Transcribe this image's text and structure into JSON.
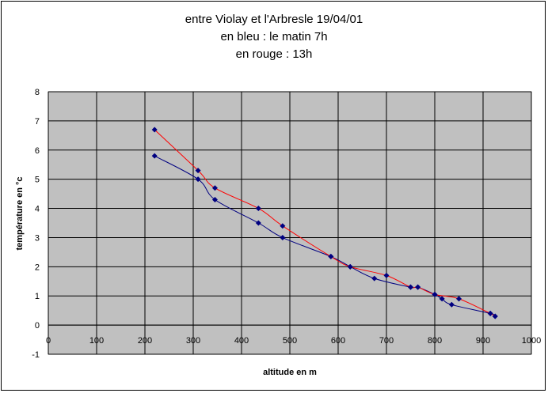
{
  "chart_data": {
    "type": "line",
    "title_lines": [
      "entre Violay et l'Arbresle 19/04/01",
      "en bleu : le matin 7h",
      "en rouge : 13h"
    ],
    "xlabel": "altitude en m",
    "ylabel": "température en °c",
    "xlim": [
      0,
      1000
    ],
    "ylim": [
      -1,
      8
    ],
    "x_ticks": [
      "0",
      "100",
      "200",
      "300",
      "400",
      "500",
      "600",
      "700",
      "800",
      "900",
      "1000"
    ],
    "y_ticks": [
      "-1",
      "0",
      "1",
      "2",
      "3",
      "4",
      "5",
      "6",
      "7",
      "8"
    ],
    "grid": true,
    "series": [
      {
        "color": "#000080",
        "points": [
          [
            220,
            5.8
          ],
          [
            310,
            5.0
          ],
          [
            345,
            4.3
          ],
          [
            435,
            3.5
          ],
          [
            485,
            3.0
          ],
          [
            585,
            2.35
          ],
          [
            625,
            2.0
          ],
          [
            675,
            1.6
          ],
          [
            750,
            1.3
          ],
          [
            765,
            1.3
          ],
          [
            800,
            1.05
          ],
          [
            815,
            0.9
          ],
          [
            835,
            0.7
          ],
          [
            915,
            0.4
          ],
          [
            925,
            0.3
          ]
        ]
      },
      {
        "color": "#ff0000",
        "points": [
          [
            220,
            6.7
          ],
          [
            310,
            5.3
          ],
          [
            345,
            4.7
          ],
          [
            435,
            4.0
          ],
          [
            485,
            3.4
          ],
          [
            585,
            2.35
          ],
          [
            625,
            2.0
          ],
          [
            700,
            1.7
          ],
          [
            750,
            1.3
          ],
          [
            765,
            1.3
          ],
          [
            800,
            1.05
          ],
          [
            850,
            0.9
          ],
          [
            915,
            0.4
          ],
          [
            925,
            0.3
          ]
        ]
      }
    ]
  }
}
